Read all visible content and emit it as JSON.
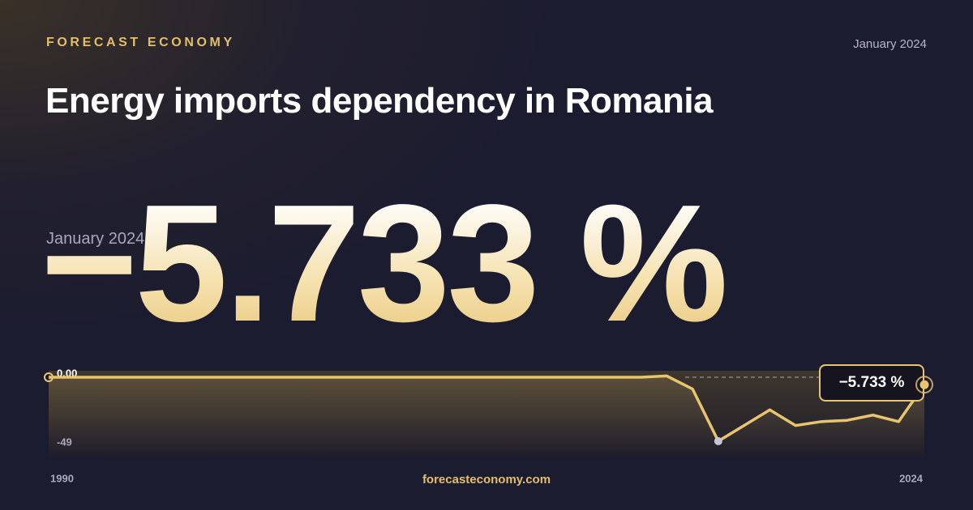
{
  "brand": "FORECAST ECONOMY",
  "date": "January 2024",
  "title": "Energy imports dependency in Romania",
  "footer": "forecasteconomy.com",
  "chart_data": {
    "type": "line",
    "color": "#e8c46f",
    "x": [
      1990,
      1991,
      1992,
      1993,
      1994,
      1995,
      1996,
      1997,
      1998,
      1999,
      2000,
      2001,
      2002,
      2003,
      2004,
      2005,
      2006,
      2007,
      2008,
      2009,
      2010,
      2011,
      2012,
      2013,
      2014,
      2015,
      2016,
      2017,
      2018,
      2019,
      2020,
      2021,
      2022,
      2023,
      2024
    ],
    "values": [
      0,
      0,
      0,
      0,
      0,
      0,
      0,
      0,
      0,
      0,
      0,
      0,
      0,
      0,
      0,
      0,
      0,
      0,
      0,
      0,
      0,
      0,
      0,
      0,
      1,
      -9,
      -49,
      -37,
      -25,
      -37,
      -34,
      -33,
      -29,
      -34,
      -5.733
    ],
    "value_labels": [
      null,
      null,
      null,
      null,
      null,
      null,
      null,
      null,
      null,
      null,
      null,
      null,
      null,
      null,
      null,
      null,
      null,
      null,
      null,
      null,
      null,
      null,
      null,
      null,
      null,
      null,
      null,
      null,
      null,
      null,
      null,
      null,
      null,
      null,
      "−5.733 %"
    ],
    "xlim": [
      1990,
      2024
    ],
    "xticks": [
      1990,
      2024
    ],
    "ylim": [
      -49,
      0
    ],
    "yticks": [
      {
        "value": 0,
        "label": "0.00"
      },
      -49
    ]
  }
}
